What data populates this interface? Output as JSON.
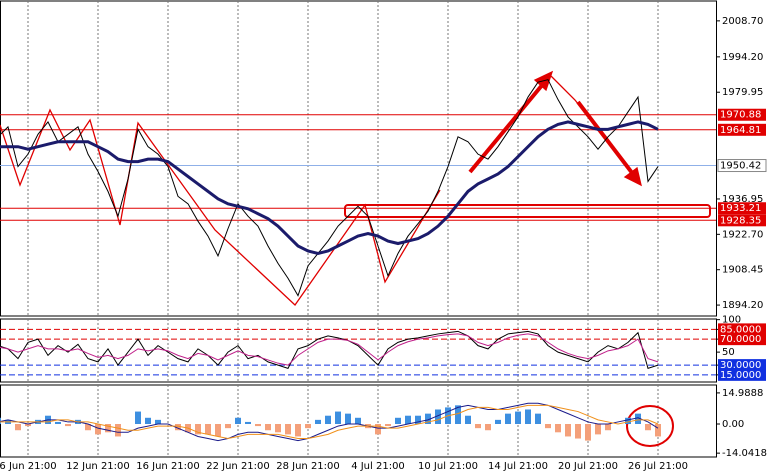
{
  "chart_data": [
    {
      "type": "line",
      "categories": [
        null,
        null,
        null,
        "6 Jun 21:00",
        null,
        null,
        null,
        null,
        null,
        null,
        "12 Jun 21:00",
        null,
        null,
        null,
        null,
        null,
        null,
        "16 Jun 21:00",
        null,
        null,
        null,
        null,
        null,
        null,
        "22 Jun 21:00",
        null,
        null,
        null,
        null,
        null,
        null,
        "28 Jun 21:00",
        null,
        null,
        null,
        null,
        null,
        null,
        "4 Jul 21:00",
        null,
        null,
        null,
        null,
        null,
        null,
        "10 Jul 21:00",
        null,
        null,
        null,
        null,
        null,
        null,
        "14 Jul 21:00",
        null,
        null,
        null,
        null,
        null,
        null,
        "20 Jul 21:00",
        null,
        null,
        null,
        null,
        null,
        null,
        "26 Jul 21:00"
      ],
      "series": [
        {
          "color": "#000000",
          "values": [
            1962,
            1966,
            1950,
            1955,
            1963,
            1968,
            1960,
            1963,
            1966,
            1955,
            1948,
            1940,
            1930,
            1945,
            1965,
            1958,
            1955,
            1950,
            1938,
            1935,
            1928,
            1922,
            1914,
            1925,
            1935,
            1930,
            1926,
            1918,
            1911,
            1905,
            1898,
            1910,
            1915,
            1920,
            1926,
            1930,
            1934,
            1930,
            1918,
            1906,
            1915,
            1922,
            1927,
            1932,
            1940,
            1950,
            1962,
            1960,
            1955,
            1953,
            1958,
            1964,
            1970,
            1978,
            1984,
            1985,
            1977,
            1970,
            1966,
            1962,
            1957,
            1962,
            1966,
            1972,
            1978,
            1944,
            1950
          ]
        },
        {
          "color": "#1b1b6b",
          "values": [
            1958,
            1958,
            1958,
            1957,
            1958,
            1959,
            1960,
            1960,
            1960,
            1960,
            1958,
            1956,
            1953,
            1952,
            1952,
            1953,
            1953,
            1952,
            1949,
            1946,
            1943,
            1940,
            1937,
            1935,
            1934,
            1933,
            1931,
            1929,
            1926,
            1922,
            1918,
            1916,
            1915,
            1916,
            1918,
            1920,
            1922,
            1923,
            1922,
            1920,
            1919,
            1920,
            1921,
            1923,
            1926,
            1930,
            1935,
            1940,
            1943,
            1945,
            1947,
            1950,
            1954,
            1958,
            1962,
            1965,
            1967,
            1968,
            1967,
            1966,
            1965,
            1965,
            1966,
            1967,
            1968,
            1967,
            1965
          ]
        }
      ],
      "ylim": [
        1889.8,
        2016.7
      ],
      "yticks": [
        {
          "value": 2008.7,
          "label": "2008.70"
        },
        {
          "value": 1994.2,
          "label": "1994.20"
        },
        1979.95,
        1936.95,
        {
          "value": 1922.7,
          "label": "1922.70"
        },
        1908.45,
        {
          "value": 1894.2,
          "label": "1894.20"
        }
      ],
      "hlines": [
        1970.88,
        1964.81,
        1933.21,
        1928.35
      ],
      "hline_color": "#e00000",
      "last_price": 1950.42,
      "last_price_color": "#8fb0e8",
      "grid": true
    },
    {
      "type": "line",
      "series": [
        {
          "color": "#000000",
          "values": [
            60,
            55,
            40,
            65,
            70,
            45,
            60,
            50,
            62,
            40,
            35,
            55,
            30,
            50,
            70,
            45,
            60,
            50,
            40,
            35,
            55,
            45,
            30,
            50,
            60,
            40,
            45,
            35,
            30,
            25,
            55,
            60,
            70,
            75,
            72,
            68,
            60,
            45,
            30,
            55,
            65,
            70,
            72,
            75,
            78,
            80,
            82,
            75,
            60,
            55,
            70,
            78,
            80,
            82,
            78,
            60,
            50,
            45,
            40,
            35,
            50,
            60,
            55,
            65,
            80,
            25,
            30
          ]
        },
        {
          "color": "#c0208a",
          "values": [
            58,
            55,
            50,
            55,
            60,
            55,
            55,
            52,
            55,
            48,
            42,
            45,
            40,
            45,
            55,
            52,
            55,
            52,
            45,
            40,
            48,
            45,
            38,
            45,
            52,
            45,
            43,
            38,
            33,
            30,
            45,
            55,
            65,
            70,
            70,
            68,
            62,
            50,
            38,
            50,
            60,
            66,
            70,
            72,
            75,
            77,
            78,
            75,
            65,
            60,
            65,
            72,
            76,
            78,
            75,
            65,
            55,
            48,
            43,
            40,
            45,
            52,
            55,
            60,
            70,
            40,
            35
          ]
        }
      ],
      "ylim": [
        4,
        101
      ],
      "yticks": [
        100,
        {
          "value": 85,
          "label": "85.0000",
          "color": "#e00000"
        },
        {
          "value": 70,
          "label": "70.0000",
          "color": "#e00000"
        },
        50,
        {
          "value": 30,
          "label": "30.0000",
          "color": "#1030e0"
        },
        {
          "value": 15,
          "label": "15.0000",
          "color": "#1030e0"
        }
      ],
      "grid": true
    },
    {
      "type": "macd",
      "values": [
        3,
        2,
        -3,
        -1,
        2,
        4,
        1,
        -1,
        2,
        -3,
        -5,
        -4,
        -6,
        0,
        6,
        3,
        2,
        0,
        -3,
        -4,
        -5,
        -5,
        -6,
        -2,
        3,
        1,
        -1,
        -3,
        -4,
        -5,
        -6,
        -2,
        2,
        4,
        6,
        5,
        3,
        -2,
        -5,
        -1,
        3,
        4,
        4,
        5,
        7,
        8,
        9,
        4,
        -2,
        -3,
        2,
        5,
        6,
        7,
        5,
        -2,
        -4,
        -6,
        -7,
        -8,
        -5,
        -3,
        0,
        3,
        5,
        -3,
        -6
      ],
      "pos_color": "#3d8fe0",
      "neg_color": "#f4a07a",
      "series": [
        {
          "color": "#1b1b8b",
          "values": [
            1,
            2,
            1,
            0,
            1,
            2,
            2,
            1,
            1,
            0,
            -2,
            -3,
            -4,
            -4,
            -2,
            -1,
            0,
            0,
            -2,
            -4,
            -6,
            -7,
            -8,
            -7,
            -5,
            -4,
            -4,
            -5,
            -6,
            -7,
            -8,
            -7,
            -5,
            -3,
            -1,
            0,
            0,
            -1,
            -2,
            -2,
            -1,
            0,
            1,
            2,
            4,
            6,
            8,
            9,
            8,
            7,
            7,
            8,
            9,
            10,
            10,
            9,
            7,
            5,
            3,
            1,
            0,
            0,
            1,
            2,
            3,
            1,
            -2
          ]
        },
        {
          "color": "#f0901a",
          "values": [
            1,
            1,
            1,
            1,
            1,
            1,
            2,
            2,
            1,
            1,
            0,
            -1,
            -2,
            -3,
            -3,
            -2,
            -1,
            -1,
            -1,
            -2,
            -4,
            -5,
            -6,
            -7,
            -6,
            -5,
            -5,
            -5,
            -5,
            -6,
            -7,
            -7,
            -6,
            -5,
            -3,
            -2,
            -1,
            -1,
            -1,
            -2,
            -2,
            -1,
            0,
            1,
            2,
            4,
            5,
            7,
            8,
            8,
            7,
            7,
            8,
            9,
            9,
            9,
            8,
            7,
            6,
            4,
            2,
            1,
            0,
            1,
            2,
            2,
            0
          ]
        }
      ],
      "ylim": [
        -15.9,
        18.8
      ],
      "yticks": [
        14.9888,
        {
          "value": 0,
          "label": "0.00"
        },
        -14.0418
      ],
      "grid": true
    }
  ]
}
